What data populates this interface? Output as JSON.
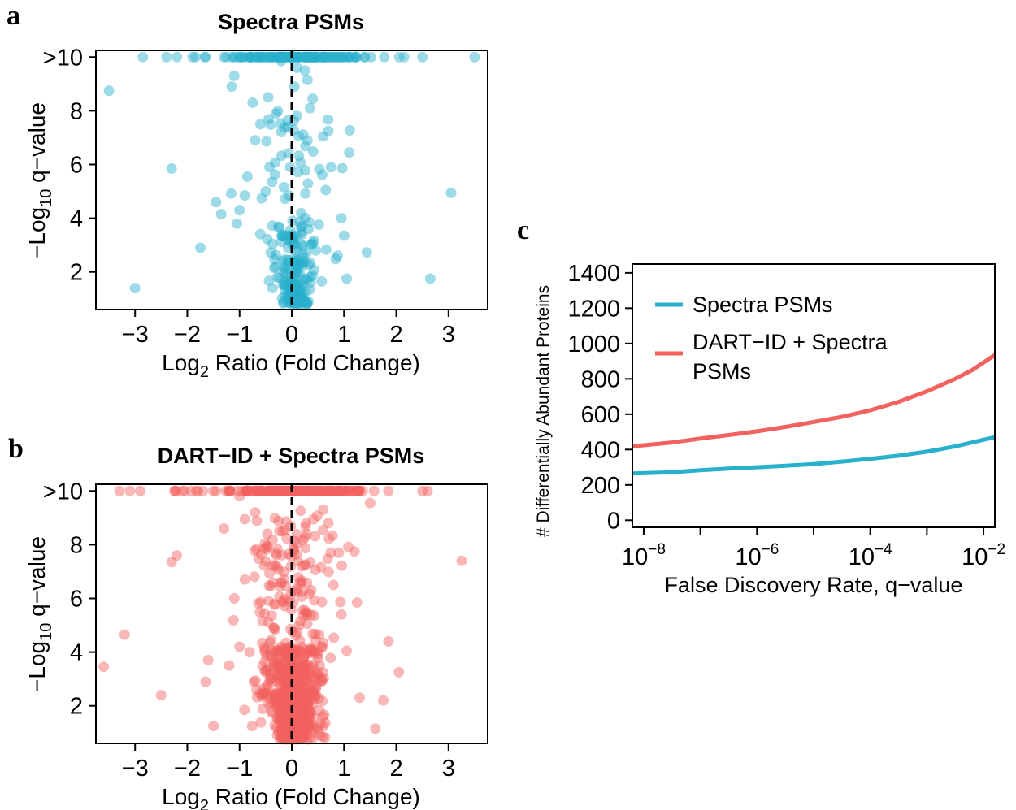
{
  "colors": {
    "spectra": "#29b0cc",
    "dart": "#f2625f"
  },
  "chart_data": [
    {
      "panel": "a",
      "type": "scatter",
      "title": "Spectra PSMs",
      "xlabel": {
        "main": "Log",
        "sub": "2",
        "rest": " Ratio (Fold Change)"
      },
      "ylabel": {
        "main": "−Log",
        "sub": "10",
        "rest": " q−value"
      },
      "xlim": [
        -3.75,
        3.75
      ],
      "ylim": [
        0.6,
        10.25
      ],
      "x_ticks": [
        -3,
        -2,
        -1,
        0,
        1,
        2,
        3
      ],
      "x_tick_labels": [
        "−3",
        "−2",
        "−1",
        "0",
        "1",
        "2",
        "3"
      ],
      "y_ticks": [
        2,
        4,
        6,
        8,
        10
      ],
      "y_tick_labels": [
        "2",
        "4",
        "6",
        "8",
        ">10"
      ],
      "reference_line_x": 0,
      "seed": 7,
      "points": [
        [
          -3.5,
          8.75
        ],
        [
          -2.3,
          5.85
        ],
        [
          -1.45,
          4.6
        ],
        [
          -1.35,
          4.15
        ],
        [
          -1.75,
          2.9
        ],
        [
          -3.0,
          1.4
        ],
        [
          3.05,
          4.95
        ],
        [
          2.65,
          1.75
        ],
        [
          1.1,
          6.45
        ],
        [
          0.95,
          4.0
        ],
        [
          1.0,
          3.35
        ],
        [
          1.05,
          1.75
        ],
        [
          -1.0,
          4.3
        ],
        [
          -1.05,
          3.8
        ],
        [
          -0.85,
          5.55
        ],
        [
          -0.9,
          4.85
        ],
        [
          -0.7,
          6.9
        ],
        [
          -0.6,
          7.5
        ],
        [
          -0.75,
          8.3
        ],
        [
          -0.45,
          8.5
        ],
        [
          -0.3,
          7.9
        ],
        [
          -1.1,
          9.3
        ],
        [
          -1.15,
          8.9
        ],
        [
          0.3,
          9.15
        ],
        [
          0.1,
          9.6
        ],
        [
          0.25,
          9.5
        ],
        [
          0.35,
          8.1
        ],
        [
          0.4,
          8.45
        ],
        [
          0.6,
          7.05
        ],
        [
          0.7,
          7.25
        ],
        [
          0.65,
          5.05
        ],
        [
          0.75,
          5.9
        ],
        [
          -0.2,
          9.85
        ],
        [
          0.05,
          8.9
        ],
        [
          0.3,
          6.9
        ],
        [
          -0.5,
          5.0
        ]
      ],
      "generated": {
        "row10_count": 130,
        "row10_spread": 1.1,
        "core_count": 160,
        "core_spread_x": 0.28,
        "core_ymin": 0.8,
        "core_ymax": 3.8,
        "mid_count": 70,
        "mid_spread_x": 0.45,
        "mid_ymin": 1.2,
        "mid_ymax": 8.0
      },
      "row10_outliers": [
        -2.85,
        -2.4,
        -2.2,
        -1.65,
        1.4,
        2.15,
        2.5,
        3.5,
        1.0,
        1.2,
        -1.9,
        0.85
      ]
    },
    {
      "panel": "b",
      "type": "scatter",
      "title": "DART−ID + Spectra PSMs",
      "xlabel": {
        "main": "Log",
        "sub": "2",
        "rest": " Ratio (Fold Change)"
      },
      "ylabel": {
        "main": "−Log",
        "sub": "10",
        "rest": " q−value"
      },
      "xlim": [
        -3.75,
        3.75
      ],
      "ylim": [
        0.6,
        10.25
      ],
      "x_ticks": [
        -3,
        -2,
        -1,
        0,
        1,
        2,
        3
      ],
      "x_tick_labels": [
        "−3",
        "−2",
        "−1",
        "0",
        "1",
        "2",
        "3"
      ],
      "y_ticks": [
        2,
        4,
        6,
        8,
        10
      ],
      "y_tick_labels": [
        "2",
        "4",
        "6",
        "8",
        ">10"
      ],
      "reference_line_x": 0,
      "seed": 21,
      "points": [
        [
          -3.6,
          3.45
        ],
        [
          -3.2,
          4.65
        ],
        [
          -2.5,
          2.4
        ],
        [
          -2.2,
          7.6
        ],
        [
          -2.3,
          7.35
        ],
        [
          -1.6,
          3.7
        ],
        [
          -1.65,
          2.9
        ],
        [
          -1.5,
          1.25
        ],
        [
          -1.3,
          8.6
        ],
        [
          3.25,
          7.4
        ],
        [
          2.05,
          3.25
        ],
        [
          1.85,
          4.4
        ],
        [
          1.75,
          2.2
        ],
        [
          1.6,
          1.15
        ],
        [
          1.5,
          9.55
        ],
        [
          1.2,
          7.75
        ],
        [
          1.25,
          5.85
        ],
        [
          1.3,
          2.3
        ],
        [
          -1.2,
          3.5
        ],
        [
          -1.0,
          4.2
        ],
        [
          -1.1,
          6.0
        ],
        [
          -0.9,
          8.95
        ],
        [
          -1.0,
          9.8
        ],
        [
          -0.7,
          9.2
        ],
        [
          0.6,
          9.3
        ],
        [
          0.7,
          8.8
        ],
        [
          0.9,
          7.7
        ],
        [
          0.95,
          5.4
        ],
        [
          1.05,
          4.05
        ],
        [
          0.8,
          6.5
        ]
      ],
      "generated": {
        "row10_count": 180,
        "row10_spread": 1.2,
        "core_count": 520,
        "core_spread_x": 0.35,
        "core_ymin": 0.75,
        "core_ymax": 4.2,
        "mid_count": 220,
        "mid_spread_x": 0.5,
        "mid_ymin": 1.2,
        "mid_ymax": 9.3
      },
      "row10_outliers": [
        -3.3,
        -3.1,
        -2.9,
        -2.25,
        -2.05,
        -1.7,
        1.85,
        2.5,
        2.6,
        1.3,
        1.0,
        -1.45
      ]
    },
    {
      "panel": "c",
      "type": "line",
      "xlabel": "False Discovery Rate, q−value",
      "ylabel": "# Differentially Abundant Proteins",
      "x_scale": "log10",
      "xlim_log10": [
        -8.2,
        -1.8
      ],
      "ylim": [
        -40,
        1450
      ],
      "x_ticks_log10": [
        -8,
        -7,
        -6,
        -5,
        -4,
        -3,
        -2
      ],
      "x_tick_labels": [
        {
          "base": "10",
          "exp": "−8",
          "log10": -8
        },
        {
          "base": "10",
          "exp": "−6",
          "log10": -6
        },
        {
          "base": "10",
          "exp": "−4",
          "log10": -4
        },
        {
          "base": "10",
          "exp": "−2",
          "log10": -2
        }
      ],
      "y_ticks": [
        0,
        200,
        400,
        600,
        800,
        1000,
        1200,
        1400
      ],
      "y_tick_labels": [
        "0",
        "200",
        "400",
        "600",
        "800",
        "1000",
        "1200",
        "1400"
      ],
      "legend_position": "top-left",
      "series": [
        {
          "name": "Spectra PSMs",
          "color": "#29b0cc",
          "x_log10": [
            -8.2,
            -7.5,
            -7,
            -6.5,
            -6,
            -5.5,
            -5,
            -4.5,
            -4,
            -3.5,
            -3,
            -2.5,
            -2.2,
            -1.8
          ],
          "y": [
            265,
            272,
            283,
            292,
            300,
            308,
            318,
            332,
            347,
            365,
            388,
            418,
            440,
            470
          ]
        },
        {
          "name": "DART−ID + Spectra PSMs",
          "legend_lines": [
            "DART−ID + Spectra",
            "PSMs"
          ],
          "color": "#f2625f",
          "x_log10": [
            -8.2,
            -7.5,
            -7,
            -6.5,
            -6,
            -5.5,
            -5,
            -4.5,
            -4,
            -3.5,
            -3,
            -2.5,
            -2.2,
            -1.8
          ],
          "y": [
            418,
            440,
            462,
            482,
            503,
            528,
            556,
            585,
            622,
            670,
            730,
            800,
            850,
            935
          ]
        }
      ]
    }
  ]
}
